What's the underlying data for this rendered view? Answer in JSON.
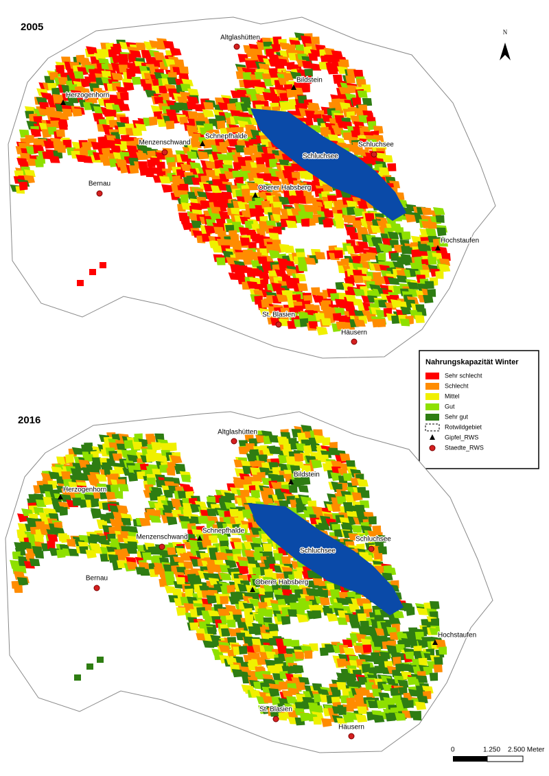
{
  "maps": [
    {
      "year": "2005",
      "peaks": [
        "Herzogenhorn",
        "Schnepfhalde",
        "Bildstein",
        "Oberer Habsberg",
        "Hochstaufen"
      ],
      "towns": [
        "Altglashütten",
        "Menzenschwand",
        "Schluchsee",
        "Bernau",
        "St. Blasien",
        "Häusern"
      ],
      "lake": "Schluchsee"
    },
    {
      "year": "2016",
      "peaks": [
        "Herzogenhorn",
        "Schnepfhalde",
        "Bildstein",
        "Oberer Habsberg",
        "Hochstaufen"
      ],
      "towns": [
        "Altglashütten",
        "Menzenschwand",
        "Schluchsee",
        "Bernau",
        "St. Blasien",
        "Häusern"
      ],
      "lake": "Schluchsee"
    }
  ],
  "legend": {
    "title": "Nahrungskapazität Winter",
    "classes": [
      {
        "label": "Sehr schlecht",
        "color": "#ff0000"
      },
      {
        "label": "Schlecht",
        "color": "#ff8c00"
      },
      {
        "label": "Mittel",
        "color": "#f0f000"
      },
      {
        "label": "Gut",
        "color": "#8ee000"
      },
      {
        "label": "Sehr gut",
        "color": "#2e7d12"
      }
    ],
    "boundary": "Rotwildgebiet",
    "peak_symbol": "Gipfel_RWS",
    "town_symbol": "Staedte_RWS"
  },
  "north": "N",
  "scale_bar": {
    "labels": [
      "0",
      "1.250",
      "2.500 Meter"
    ]
  }
}
